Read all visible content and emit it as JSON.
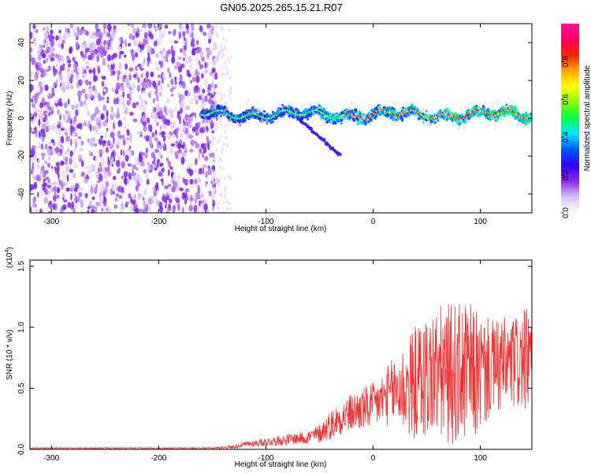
{
  "title": "GN05.2025.265.15.21.R07",
  "chart_data": [
    {
      "type": "heatmap",
      "xlabel": "Height of straight line (km)",
      "ylabel": "Frequency (Hz)",
      "xlim": [
        -320,
        148
      ],
      "ylim": [
        -50,
        50
      ],
      "xticks": [
        -300,
        -200,
        -100,
        0,
        100
      ],
      "xtick_labels": [
        "-300",
        "-200",
        "-100",
        "0",
        "100"
      ],
      "yticks": [
        -40,
        -20,
        0,
        20,
        40
      ],
      "ytick_labels": [
        "-40",
        "-20",
        "0",
        "20",
        "40"
      ],
      "noise_region_x": [
        -320,
        -145
      ],
      "signal_region_x": [
        -160,
        148
      ],
      "signal_band_hz": 2,
      "colorbar": {
        "label": "Normalized spectral amplitude",
        "range": [
          0,
          1
        ],
        "ticks": [
          0.0,
          0.2,
          0.4,
          0.6,
          0.8
        ],
        "tick_labels": [
          "0.0",
          "0.2",
          "0.4",
          "0.6",
          "0.8"
        ],
        "colormap": [
          "#ffffff",
          "#d9c3ff",
          "#8a2be2",
          "#3300ff",
          "#0055ff",
          "#00e5ff",
          "#00ff44",
          "#88ff00",
          "#ffff00",
          "#ffaa00",
          "#ff2200",
          "#ff0066",
          "#ff1493"
        ]
      },
      "grid": false
    },
    {
      "type": "line",
      "xlabel": "Height of straight line (km)",
      "ylabel": "SNR (10 * v/v)",
      "multiplier_label": "(x10",
      "multiplier_exp": "4",
      "multiplier_close": ")",
      "xlim": [
        -320,
        148
      ],
      "ylim": [
        0,
        1.55
      ],
      "xticks": [
        -300,
        -200,
        -100,
        0,
        100
      ],
      "xtick_labels": [
        "-300",
        "-200",
        "-100",
        "0",
        "100"
      ],
      "yticks": [
        0.0,
        0.5,
        1.0,
        1.5
      ],
      "ytick_labels": [
        "0.0",
        "0.5",
        "1.0",
        "1.5"
      ],
      "color": "#ee3333",
      "series": [
        {
          "x": [
            -320,
            -250,
            -200,
            -150,
            -130,
            -120,
            -110,
            -100,
            -90,
            -80,
            -70,
            -60,
            -50,
            -40,
            -30,
            -20,
            -10,
            0,
            10,
            20,
            30,
            40,
            50,
            60,
            70,
            80,
            90,
            100,
            110,
            120,
            130,
            140,
            148
          ],
          "y": [
            0.01,
            0.01,
            0.01,
            0.01,
            0.02,
            0.04,
            0.05,
            0.06,
            0.07,
            0.08,
            0.09,
            0.1,
            0.13,
            0.2,
            0.26,
            0.3,
            0.33,
            0.35,
            0.42,
            0.48,
            0.5,
            0.55,
            0.6,
            0.62,
            0.62,
            0.62,
            0.62,
            0.62,
            0.66,
            0.68,
            0.7,
            0.72,
            0.75
          ],
          "spread": [
            0.005,
            0.005,
            0.005,
            0.006,
            0.015,
            0.02,
            0.03,
            0.035,
            0.04,
            0.045,
            0.05,
            0.06,
            0.08,
            0.12,
            0.14,
            0.16,
            0.18,
            0.2,
            0.22,
            0.3,
            0.4,
            0.48,
            0.52,
            0.56,
            0.58,
            0.58,
            0.58,
            0.5,
            0.4,
            0.4,
            0.4,
            0.42,
            0.42
          ]
        }
      ],
      "grid": false
    }
  ]
}
